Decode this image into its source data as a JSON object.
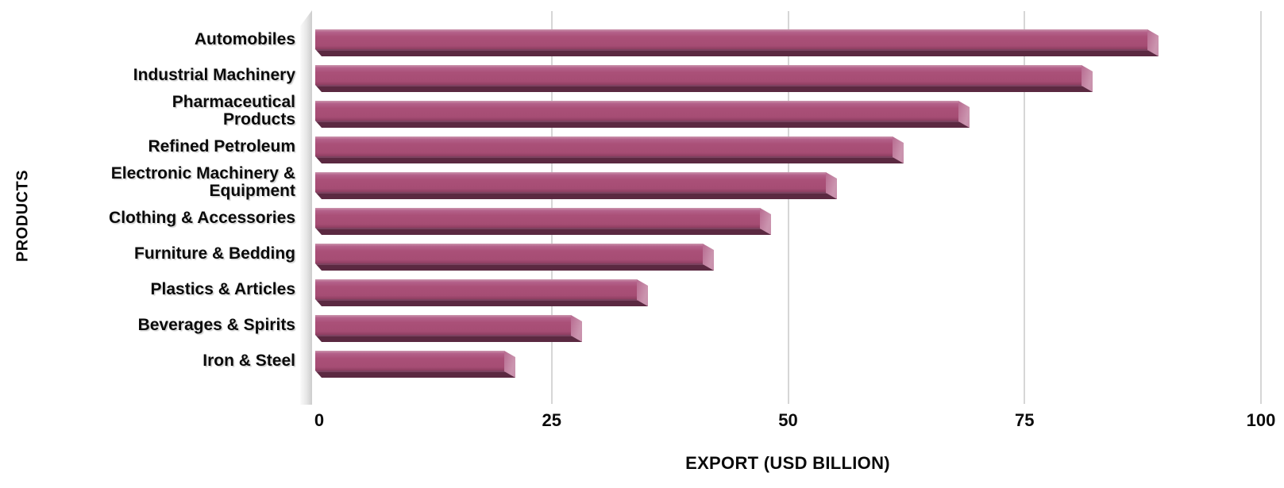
{
  "chart_data": {
    "type": "bar",
    "orientation": "horizontal",
    "title": "",
    "xlabel": "EXPORT (USD BILLION)",
    "ylabel": "PRODUCTS",
    "categories": [
      "Automobiles",
      "Industrial Machinery",
      "Pharmaceutical\nProducts",
      "Refined Petroleum",
      "Electronic Machinery &\nEquipment",
      "Clothing & Accessories",
      "Furniture & Bedding",
      "Plastics & Articles",
      "Beverages & Spirits",
      "Iron & Steel"
    ],
    "values": [
      88,
      81,
      68,
      61,
      54,
      47,
      41,
      34,
      27,
      20
    ],
    "xlim": [
      0,
      100
    ],
    "xticks": [
      0,
      25,
      50,
      75,
      100
    ],
    "grid": true,
    "legend": false,
    "colors": {
      "bar_face": "#a94f76",
      "bar_highlight": "#cb95af",
      "bar_shadow": "#5b2941",
      "gridline": "#d6d6d6",
      "axis_wall": "#e6e6e6",
      "text": "#0b0b0b",
      "background": "#ffffff"
    }
  }
}
